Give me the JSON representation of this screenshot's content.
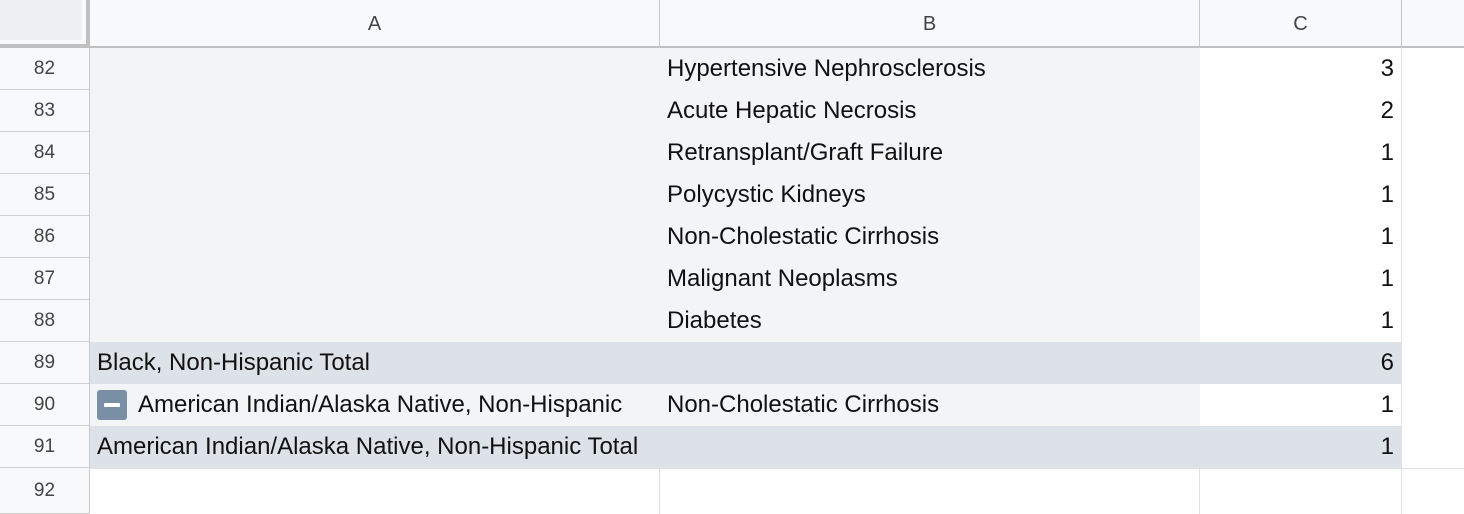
{
  "columns": [
    "A",
    "B",
    "C"
  ],
  "rows": [
    {
      "num": "82",
      "a": "",
      "b": "Hypertensive Nephrosclerosis",
      "c": "3"
    },
    {
      "num": "83",
      "a": "",
      "b": "Acute Hepatic Necrosis",
      "c": "2"
    },
    {
      "num": "84",
      "a": "",
      "b": "Retransplant/Graft Failure",
      "c": "1"
    },
    {
      "num": "85",
      "a": "",
      "b": "Polycystic Kidneys",
      "c": "1"
    },
    {
      "num": "86",
      "a": "",
      "b": "Non-Cholestatic Cirrhosis",
      "c": "1"
    },
    {
      "num": "87",
      "a": "",
      "b": "Malignant Neoplasms",
      "c": "1"
    },
    {
      "num": "88",
      "a": "",
      "b": "Diabetes",
      "c": "1"
    },
    {
      "num": "89",
      "a": "Black, Non-Hispanic Total",
      "b": "",
      "c": "6"
    },
    {
      "num": "90",
      "a": "American Indian/Alaska Native, Non-Hispanic",
      "b": "Non-Cholestatic Cirrhosis",
      "c": "1"
    },
    {
      "num": "91",
      "a": "American Indian/Alaska Native, Non-Hispanic Total",
      "b": "",
      "c": "1"
    },
    {
      "num": "92",
      "a": "",
      "b": "",
      "c": ""
    }
  ],
  "colors": {
    "group_bg": "#f3f4f6",
    "total_bg": "#dde1e8",
    "collapse_button": "#7a8fa6"
  },
  "icons": {
    "collapse": "minus-icon"
  }
}
